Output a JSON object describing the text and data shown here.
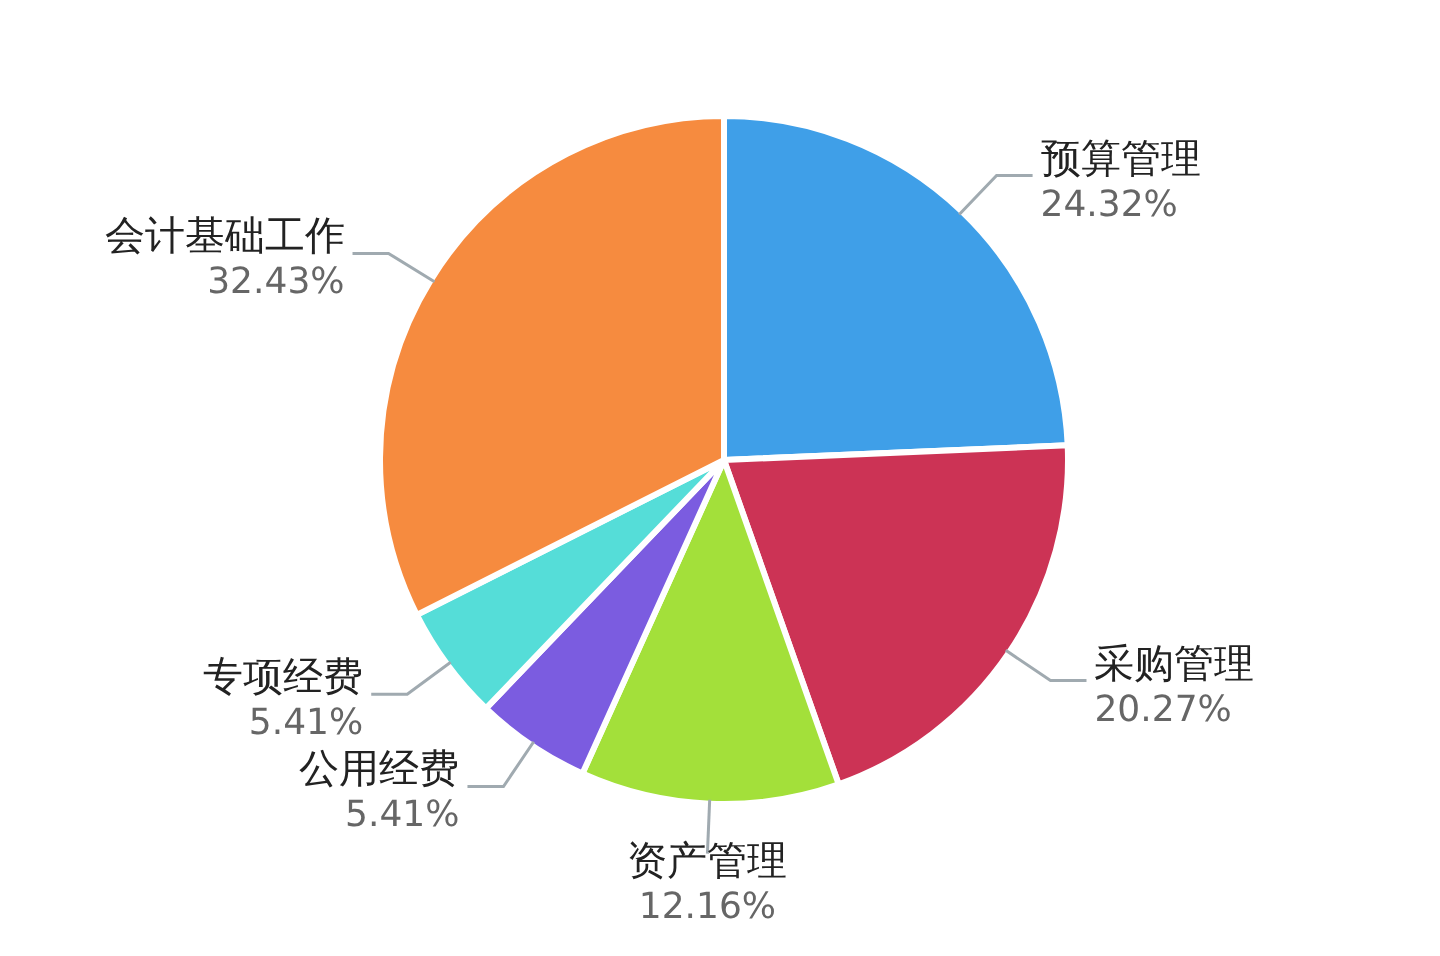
{
  "chart_data": {
    "type": "pie",
    "categories": [
      "预算管理",
      "采购管理",
      "资产管理",
      "公用经费",
      "专项经费",
      "会计基础工作"
    ],
    "values": [
      24.32,
      20.27,
      12.16,
      5.41,
      5.41,
      32.43
    ],
    "value_labels": [
      "24.32%",
      "20.27%",
      "12.16%",
      "5.41%",
      "5.41%",
      "32.43%"
    ],
    "colors": [
      "#3f9fe8",
      "#cc3355",
      "#a3e03a",
      "#7b5ce0",
      "#55ddd8",
      "#f68b3f"
    ]
  }
}
